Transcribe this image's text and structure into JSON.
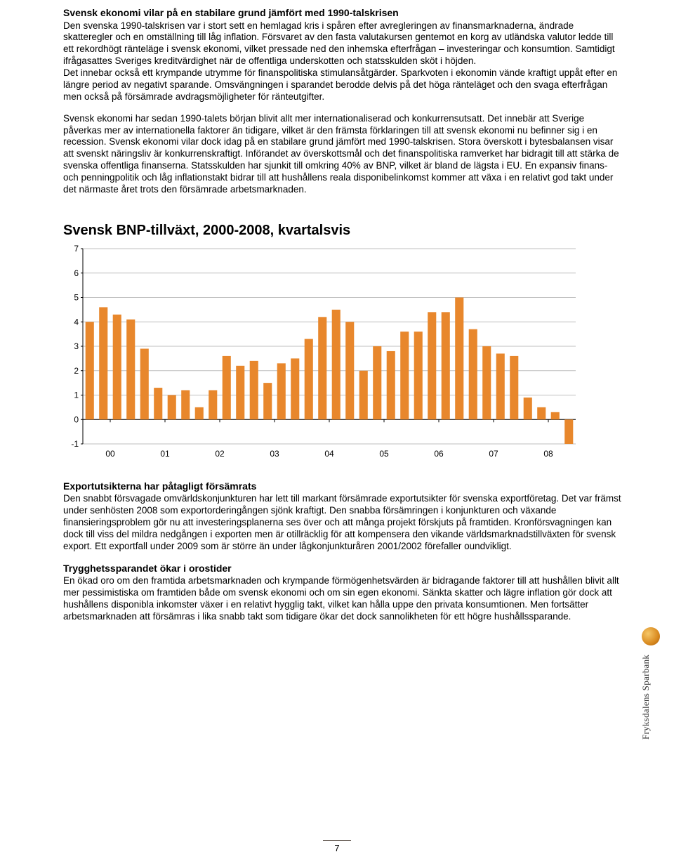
{
  "section1": {
    "title": "Svensk ekonomi vilar på en stabilare grund jämfört med 1990-talskrisen",
    "p1": "Den svenska 1990-talskrisen var i stort sett en hemlagad kris i spåren efter avregleringen av finansmarknaderna, ändrade skatteregler och en omställning till låg inflation. Försvaret av den fasta valutakursen gentemot en korg av utländska valutor ledde till ett rekordhögt ränteläge i svensk ekonomi, vilket pressade ned den inhemska efterfrågan – investeringar och konsumtion. Samtidigt ifrågasattes Sveriges kreditvärdighet när de offentliga underskotten och statsskulden sköt i höjden.",
    "p2": "Det innebar också ett krympande utrymme för finanspolitiska stimulansåtgärder. Sparkvoten i ekonomin vände kraftigt uppåt efter en längre period av negativt sparande. Omsvängningen i sparandet berodde delvis på det höga ränteläget och den svaga efterfrågan men också på försämrade avdragsmöjligheter för ränteutgifter.",
    "p3": "Svensk ekonomi har sedan 1990-talets början blivit allt mer internationaliserad och konkurrensutsatt. Det innebär att Sverige påverkas mer av internationella faktorer än tidigare, vilket är den främsta förklaringen till att svensk ekonomi nu befinner sig i en recession. Svensk ekonomi vilar dock idag på en stabilare grund jämfört med 1990-talskrisen. Stora överskott i bytesbalansen visar att svenskt näringsliv är konkurrenskraftigt. Införandet av överskottsmål och det finanspolitiska ramverket har bidragit till att stärka de svenska offentliga finanserna. Statsskulden har sjunkit till omkring 40% av BNP, vilket är bland de lägsta i EU. En expansiv finans- och penningpolitik och låg inflationstakt bidrar till att hushållens reala disponibelinkomst kommer att växa i en relativt god takt under det närmaste året trots den försämrade arbetsmarknaden."
  },
  "chart": {
    "title": "Svensk BNP-tillväxt, 2000-2008, kvartalsvis",
    "type": "bar",
    "y_ticks": [
      -1,
      0,
      1,
      2,
      3,
      4,
      5,
      6,
      7
    ],
    "ylim": [
      -1,
      7
    ],
    "x_labels": [
      "00",
      "01",
      "02",
      "03",
      "04",
      "05",
      "06",
      "07",
      "08"
    ],
    "values": [
      4.0,
      4.6,
      4.3,
      4.1,
      2.9,
      1.3,
      1.0,
      1.2,
      0.5,
      1.2,
      2.6,
      2.2,
      2.4,
      1.5,
      2.3,
      2.5,
      3.3,
      4.2,
      4.5,
      4.0,
      2.0,
      3.0,
      2.8,
      3.6,
      3.6,
      4.4,
      4.4,
      5.0,
      3.7,
      3.0,
      2.7,
      2.6,
      0.9,
      0.5,
      0.3,
      -1.0
    ],
    "bar_color": "#e8872c",
    "background_color": "#ffffff",
    "grid_color": "#bfbfbf",
    "axis_color": "#000000",
    "label_fontsize": 12
  },
  "section2": {
    "title": "Exportutsikterna har påtagligt försämrats",
    "p1": "Den snabbt försvagade omvärldskonjunkturen har lett till markant försämrade exportutsikter för svenska exportföretag. Det var främst under senhösten 2008 som exportorderingången sjönk kraftigt. Den snabba försämringen i konjunkturen och växande finansieringsproblem gör nu att investeringsplanerna ses över och att många projekt förskjuts på framtiden. Kronförsvagningen kan dock till viss del mildra nedgången i exporten men är otillräcklig för att kompensera den vikande världsmarknadstillväxten för svensk export. Ett exportfall under 2009 som är större än under lågkonjunkturåren 2001/2002 förefaller oundvikligt."
  },
  "section3": {
    "title": "Trygghetssparandet ökar i orostider",
    "p1": "En ökad oro om den framtida arbetsmarknaden och krympande förmögenhetsvärden är bidragande faktorer till att hushållen blivit allt mer pessimistiska om framtiden både om svensk ekonomi och om sin egen ekonomi. Sänkta skatter och lägre inflation gör dock att hushållens disponibla inkomster växer i en relativt hygglig takt, vilket kan hålla uppe den privata konsumtionen. Men fortsätter arbetsmarknaden att försämras i lika snabb takt som tidigare ökar det dock sannolikheten för ett högre hushållssparande."
  },
  "logo_text": "Fryksdalens Sparbank",
  "page_number": "7"
}
